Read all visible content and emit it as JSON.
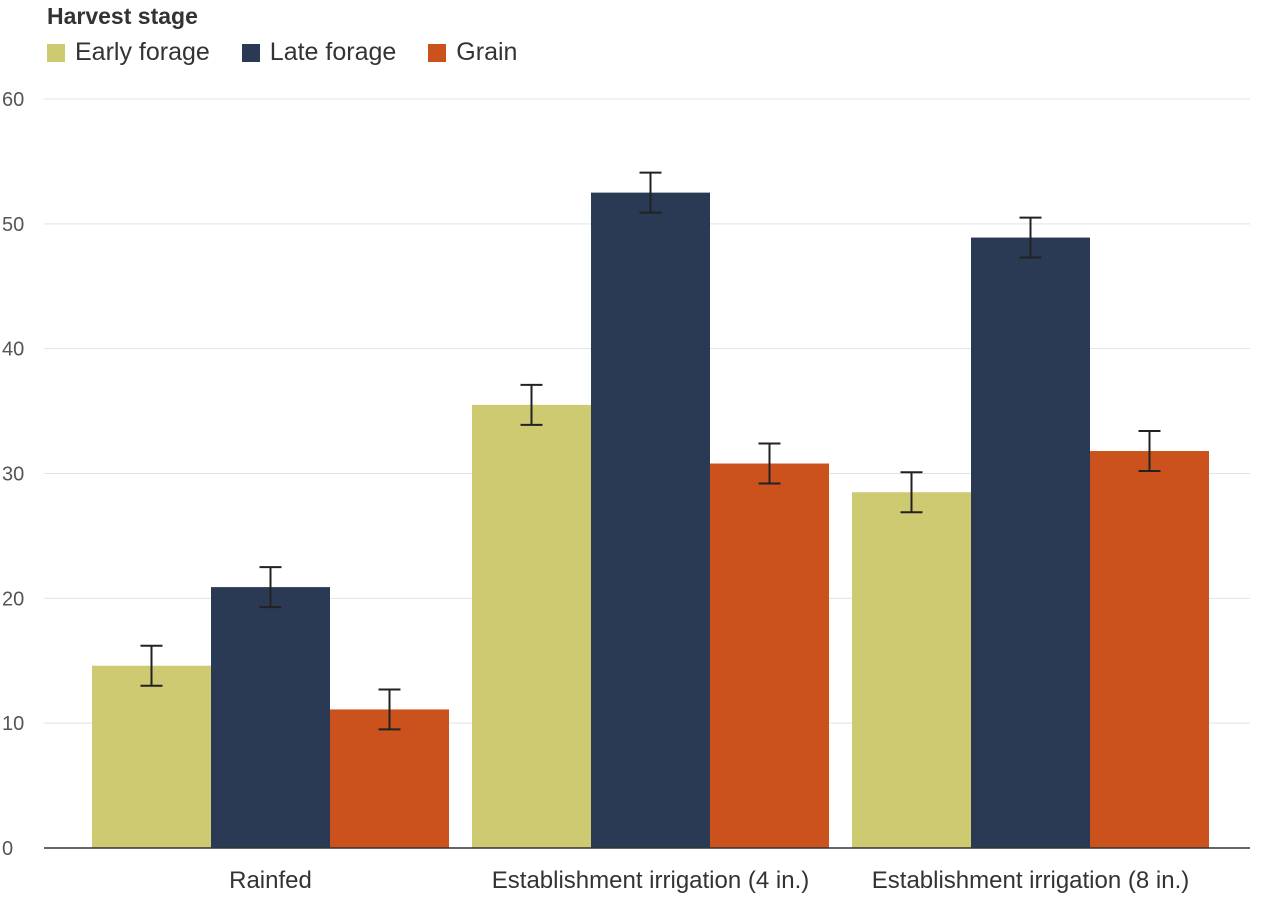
{
  "legend": {
    "title": "Harvest stage"
  },
  "chart_data": {
    "type": "bar",
    "title": "",
    "xlabel": "",
    "ylabel": "",
    "ylim": [
      0,
      60
    ],
    "yticks": [
      0,
      10,
      20,
      30,
      40,
      50,
      60
    ],
    "grid": true,
    "legend_position": "top-left",
    "categories": [
      "Rainfed",
      "Establishment irrigation (4 in.)",
      "Establishment irrigation (8 in.)"
    ],
    "series": [
      {
        "name": "Early forage",
        "color": "#cdca72",
        "values": [
          14.6,
          35.5,
          28.5
        ],
        "errors": [
          1.6,
          1.6,
          1.6
        ]
      },
      {
        "name": "Late forage",
        "color": "#2a3a55",
        "values": [
          20.9,
          52.5,
          48.9
        ],
        "errors": [
          1.6,
          1.6,
          1.6
        ]
      },
      {
        "name": "Grain",
        "color": "#cc521d",
        "values": [
          11.1,
          30.8,
          31.8
        ],
        "errors": [
          1.6,
          1.6,
          1.6
        ]
      }
    ]
  }
}
